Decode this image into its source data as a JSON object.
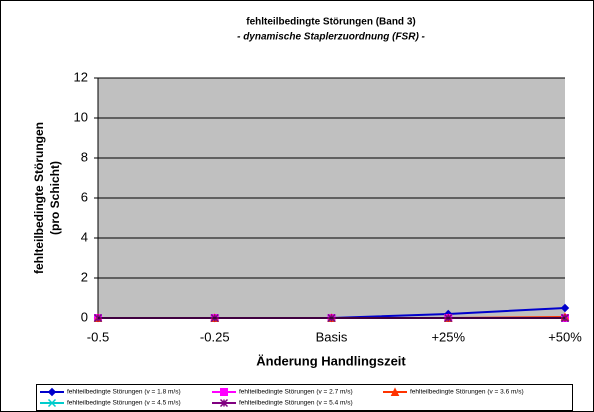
{
  "chart_data": {
    "type": "line",
    "title": "fehlteilbedingte Störungen (Band 3)",
    "subtitle": "- dynamische Staplerzuordnung  (FSR) -",
    "x_label": "Änderung Handlingszeit",
    "y_label": [
      "fehlteilbedingte Störungen",
      "(pro Schicht)"
    ],
    "categories": [
      "-0.5",
      "-0.25",
      "Basis",
      "+25%",
      "+50%"
    ],
    "ylim": [
      0,
      12
    ],
    "yticks": [
      0,
      2,
      4,
      6,
      8,
      10,
      12
    ],
    "grid": true,
    "legend": "bottom",
    "series": [
      {
        "name": "fehlteilbedingte Störungen (v = 1.8 m/s)",
        "color": "#0000cc",
        "marker": "diamond",
        "values": [
          0,
          0,
          0,
          0.2,
          0.5
        ]
      },
      {
        "name": "fehlteilbedingte Störungen (v = 2.7 m/s)",
        "color": "#ff00ff",
        "marker": "square",
        "values": [
          0,
          0,
          0,
          0,
          0
        ]
      },
      {
        "name": "fehlteilbedingte Störungen (v = 3.6 m/s)",
        "color": "#ff3300",
        "marker": "triangle",
        "values": [
          0,
          0,
          0,
          0,
          0.05
        ]
      },
      {
        "name": "fehlteilbedingte Störungen (v = 4.5 m/s)",
        "color": "#00cccc",
        "marker": "x",
        "values": [
          0,
          0,
          0,
          0,
          0
        ]
      },
      {
        "name": "fehlteilbedingte Störungen (v = 5.4 m/s)",
        "color": "#800080",
        "marker": "star",
        "values": [
          0,
          0,
          0,
          0,
          0
        ]
      }
    ]
  }
}
